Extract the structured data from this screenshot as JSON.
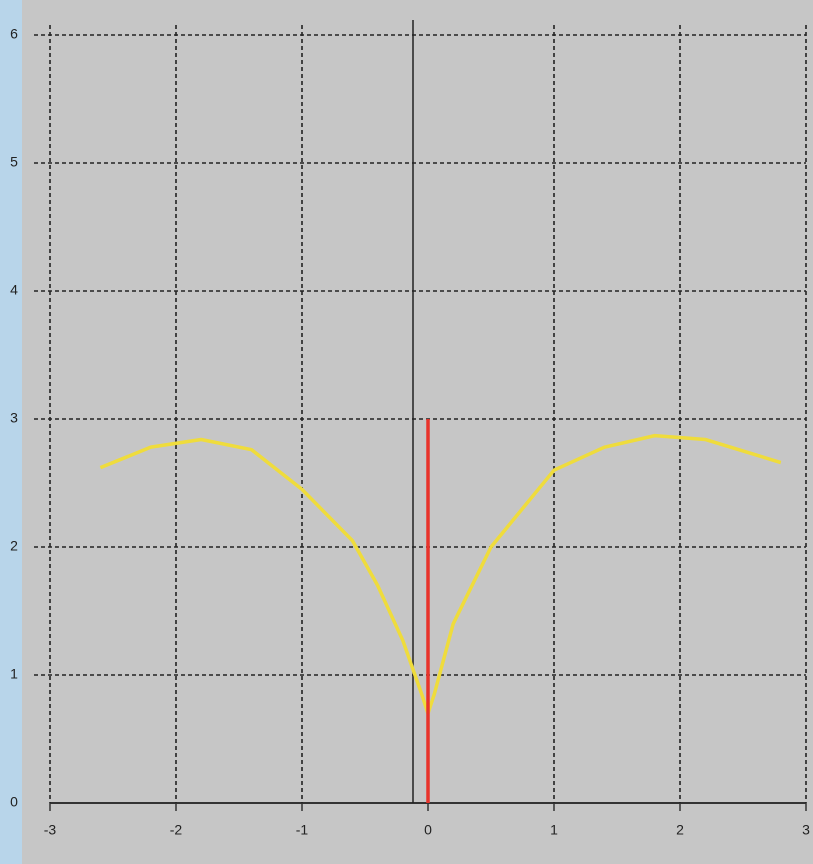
{
  "chart_data": {
    "type": "line",
    "xlim": [
      -3,
      3
    ],
    "ylim": [
      0,
      6
    ],
    "xticks": [
      -3,
      -2,
      -1,
      0,
      1,
      2,
      3
    ],
    "yticks": [
      0,
      1,
      2,
      3,
      4,
      5,
      6
    ],
    "grid": true,
    "series": [
      {
        "color": "#efdc3c",
        "x": [
          -2.6,
          -2.2,
          -1.8,
          -1.4,
          -1.0,
          -0.6,
          -0.4,
          -0.2,
          -0.05,
          0,
          0.05,
          0.2,
          0.5,
          1.0,
          1.4,
          1.8,
          2.2,
          2.6,
          2.8
        ],
        "values": [
          2.62,
          2.78,
          2.84,
          2.76,
          2.45,
          2.05,
          1.7,
          1.27,
          0.85,
          0.7,
          0.85,
          1.4,
          2.0,
          2.6,
          2.78,
          2.87,
          2.84,
          2.72,
          2.66
        ]
      },
      {
        "color": "#e8322a",
        "x": [
          0,
          0
        ],
        "values": [
          0,
          3
        ]
      }
    ]
  }
}
